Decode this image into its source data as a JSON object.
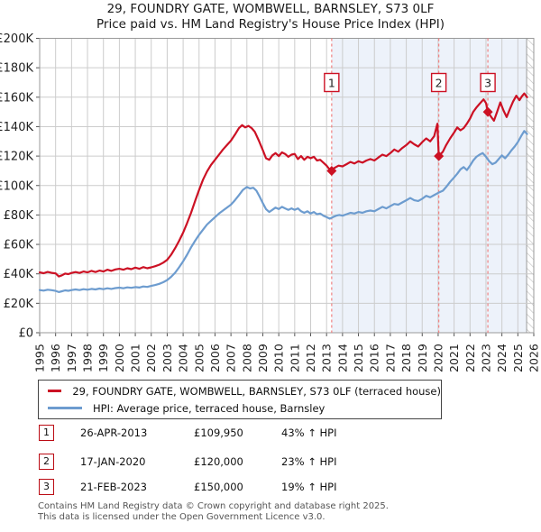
{
  "title": {
    "line1": "29, FOUNDRY GATE, WOMBWELL, BARNSLEY, S73 0LF",
    "line2": "Price paid vs. HM Land Registry's House Price Index (HPI)"
  },
  "chart_data": {
    "type": "line",
    "xlim": [
      1995,
      2026
    ],
    "ylim": [
      0,
      200000
    ],
    "values_unit": "GBP_thousands",
    "x_ticks": [
      1995,
      1996,
      1997,
      1998,
      1999,
      2000,
      2001,
      2002,
      2003,
      2004,
      2005,
      2006,
      2007,
      2008,
      2009,
      2010,
      2011,
      2012,
      2013,
      2014,
      2015,
      2016,
      2017,
      2018,
      2019,
      2020,
      2021,
      2022,
      2023,
      2024,
      2025,
      2026
    ],
    "y_tick_labels": [
      "£0",
      "£20K",
      "£40K",
      "£60K",
      "£80K",
      "£100K",
      "£120K",
      "£140K",
      "£160K",
      "£180K",
      "£200K"
    ],
    "grid": true,
    "shade_from_year": 2013.32,
    "hatch_from_year": 2025.55,
    "colors": {
      "property": "#cc1124",
      "hpi": "#6d9ccf",
      "sale_dash": "#f08080",
      "shade": "#edf2fa",
      "grid": "#cccccc",
      "border": "#999999",
      "hatch": "#bbbbbb"
    },
    "series": [
      {
        "name": "29, FOUNDRY GATE, WOMBWELL, BARNSLEY, S73 0LF (terraced house)",
        "color": "#cc1124",
        "points": [
          [
            1995.0,
            41.0
          ],
          [
            1995.25,
            40.4
          ],
          [
            1995.5,
            41.3
          ],
          [
            1995.75,
            40.7
          ],
          [
            1996.0,
            40.3
          ],
          [
            1996.2,
            38.2
          ],
          [
            1996.4,
            39.0
          ],
          [
            1996.6,
            40.2
          ],
          [
            1996.8,
            39.8
          ],
          [
            1997.0,
            40.6
          ],
          [
            1997.25,
            41.2
          ],
          [
            1997.5,
            40.6
          ],
          [
            1997.75,
            41.6
          ],
          [
            1998.0,
            41.0
          ],
          [
            1998.25,
            42.0
          ],
          [
            1998.5,
            41.2
          ],
          [
            1998.75,
            42.2
          ],
          [
            1999.0,
            41.6
          ],
          [
            1999.25,
            42.8
          ],
          [
            1999.5,
            42.0
          ],
          [
            1999.75,
            43.0
          ],
          [
            2000.0,
            43.4
          ],
          [
            2000.25,
            42.8
          ],
          [
            2000.5,
            43.8
          ],
          [
            2000.75,
            43.2
          ],
          [
            2001.0,
            44.2
          ],
          [
            2001.25,
            43.4
          ],
          [
            2001.5,
            44.6
          ],
          [
            2001.75,
            43.8
          ],
          [
            2002.0,
            44.4
          ],
          [
            2002.25,
            45.2
          ],
          [
            2002.5,
            46.2
          ],
          [
            2002.75,
            47.6
          ],
          [
            2003.0,
            49.5
          ],
          [
            2003.25,
            53.0
          ],
          [
            2003.5,
            57.5
          ],
          [
            2003.75,
            62.5
          ],
          [
            2004.0,
            68.0
          ],
          [
            2004.25,
            74.5
          ],
          [
            2004.5,
            81.5
          ],
          [
            2004.75,
            89.5
          ],
          [
            2005.0,
            97.0
          ],
          [
            2005.25,
            104.0
          ],
          [
            2005.5,
            109.5
          ],
          [
            2005.75,
            114.0
          ],
          [
            2006.0,
            117.5
          ],
          [
            2006.25,
            121.0
          ],
          [
            2006.5,
            124.5
          ],
          [
            2006.75,
            127.5
          ],
          [
            2007.0,
            130.5
          ],
          [
            2007.25,
            134.5
          ],
          [
            2007.5,
            139.0
          ],
          [
            2007.7,
            141.0
          ],
          [
            2007.9,
            139.5
          ],
          [
            2008.1,
            140.5
          ],
          [
            2008.3,
            139.0
          ],
          [
            2008.5,
            136.5
          ],
          [
            2008.75,
            130.5
          ],
          [
            2009.0,
            124.0
          ],
          [
            2009.2,
            118.5
          ],
          [
            2009.4,
            117.5
          ],
          [
            2009.6,
            120.5
          ],
          [
            2009.8,
            122.0
          ],
          [
            2010.0,
            120.0
          ],
          [
            2010.2,
            122.5
          ],
          [
            2010.4,
            121.5
          ],
          [
            2010.6,
            119.5
          ],
          [
            2010.8,
            121.0
          ],
          [
            2011.0,
            121.5
          ],
          [
            2011.2,
            118.0
          ],
          [
            2011.4,
            120.0
          ],
          [
            2011.6,
            117.5
          ],
          [
            2011.8,
            119.5
          ],
          [
            2012.0,
            118.5
          ],
          [
            2012.2,
            119.5
          ],
          [
            2012.4,
            117.0
          ],
          [
            2012.6,
            117.5
          ],
          [
            2012.8,
            115.5
          ],
          [
            2013.0,
            113.5
          ],
          [
            2013.15,
            111.5
          ],
          [
            2013.32,
            110.0
          ],
          [
            2013.5,
            112.0
          ],
          [
            2013.75,
            113.5
          ],
          [
            2014.0,
            113.0
          ],
          [
            2014.25,
            114.5
          ],
          [
            2014.5,
            116.0
          ],
          [
            2014.75,
            115.0
          ],
          [
            2015.0,
            116.5
          ],
          [
            2015.25,
            115.5
          ],
          [
            2015.5,
            117.0
          ],
          [
            2015.75,
            118.0
          ],
          [
            2016.0,
            117.0
          ],
          [
            2016.25,
            119.0
          ],
          [
            2016.5,
            121.0
          ],
          [
            2016.75,
            120.0
          ],
          [
            2017.0,
            122.0
          ],
          [
            2017.25,
            124.5
          ],
          [
            2017.5,
            123.0
          ],
          [
            2017.75,
            125.5
          ],
          [
            2018.0,
            127.5
          ],
          [
            2018.25,
            130.0
          ],
          [
            2018.5,
            128.0
          ],
          [
            2018.75,
            126.5
          ],
          [
            2019.0,
            129.5
          ],
          [
            2019.25,
            132.0
          ],
          [
            2019.5,
            130.0
          ],
          [
            2019.75,
            133.5
          ],
          [
            2019.95,
            142.0
          ],
          [
            2020.04,
            120.0
          ],
          [
            2020.3,
            123.0
          ],
          [
            2020.5,
            127.5
          ],
          [
            2020.75,
            132.0
          ],
          [
            2021.0,
            136.0
          ],
          [
            2021.2,
            139.5
          ],
          [
            2021.4,
            137.5
          ],
          [
            2021.6,
            139.0
          ],
          [
            2021.8,
            142.0
          ],
          [
            2022.0,
            145.5
          ],
          [
            2022.2,
            150.0
          ],
          [
            2022.4,
            153.0
          ],
          [
            2022.6,
            155.5
          ],
          [
            2022.85,
            158.5
          ],
          [
            2023.0,
            156.0
          ],
          [
            2023.12,
            150.0
          ],
          [
            2023.3,
            147.0
          ],
          [
            2023.5,
            144.0
          ],
          [
            2023.7,
            150.0
          ],
          [
            2023.9,
            156.5
          ],
          [
            2024.1,
            151.0
          ],
          [
            2024.3,
            146.5
          ],
          [
            2024.5,
            152.0
          ],
          [
            2024.7,
            157.0
          ],
          [
            2024.9,
            161.0
          ],
          [
            2025.1,
            158.0
          ],
          [
            2025.25,
            160.5
          ],
          [
            2025.4,
            162.5
          ],
          [
            2025.58,
            160.0
          ]
        ]
      },
      {
        "name": "HPI: Average price, terraced house, Barnsley",
        "color": "#6d9ccf",
        "points": [
          [
            1995.0,
            29.0
          ],
          [
            1995.25,
            28.6
          ],
          [
            1995.5,
            29.2
          ],
          [
            1995.75,
            28.9
          ],
          [
            1996.0,
            28.4
          ],
          [
            1996.2,
            27.6
          ],
          [
            1996.4,
            28.2
          ],
          [
            1996.6,
            28.8
          ],
          [
            1996.8,
            28.5
          ],
          [
            1997.0,
            29.0
          ],
          [
            1997.25,
            29.4
          ],
          [
            1997.5,
            29.0
          ],
          [
            1997.75,
            29.6
          ],
          [
            1998.0,
            29.2
          ],
          [
            1998.25,
            29.8
          ],
          [
            1998.5,
            29.4
          ],
          [
            1998.75,
            30.0
          ],
          [
            1999.0,
            29.6
          ],
          [
            1999.25,
            30.2
          ],
          [
            1999.5,
            29.8
          ],
          [
            1999.75,
            30.3
          ],
          [
            2000.0,
            30.6
          ],
          [
            2000.25,
            30.2
          ],
          [
            2000.5,
            30.8
          ],
          [
            2000.75,
            30.5
          ],
          [
            2001.0,
            31.0
          ],
          [
            2001.25,
            30.7
          ],
          [
            2001.5,
            31.4
          ],
          [
            2001.75,
            31.1
          ],
          [
            2002.0,
            31.8
          ],
          [
            2002.25,
            32.4
          ],
          [
            2002.5,
            33.2
          ],
          [
            2002.75,
            34.3
          ],
          [
            2003.0,
            35.8
          ],
          [
            2003.25,
            38.0
          ],
          [
            2003.5,
            40.8
          ],
          [
            2003.75,
            44.5
          ],
          [
            2004.0,
            48.5
          ],
          [
            2004.25,
            53.0
          ],
          [
            2004.5,
            58.0
          ],
          [
            2004.75,
            62.5
          ],
          [
            2005.0,
            66.5
          ],
          [
            2005.25,
            70.0
          ],
          [
            2005.5,
            73.5
          ],
          [
            2005.75,
            76.0
          ],
          [
            2006.0,
            78.5
          ],
          [
            2006.25,
            81.0
          ],
          [
            2006.5,
            83.0
          ],
          [
            2006.75,
            85.0
          ],
          [
            2007.0,
            87.0
          ],
          [
            2007.25,
            90.0
          ],
          [
            2007.5,
            93.5
          ],
          [
            2007.75,
            97.0
          ],
          [
            2008.0,
            99.0
          ],
          [
            2008.2,
            98.0
          ],
          [
            2008.4,
            98.5
          ],
          [
            2008.6,
            96.5
          ],
          [
            2008.8,
            92.5
          ],
          [
            2009.0,
            88.0
          ],
          [
            2009.2,
            84.0
          ],
          [
            2009.4,
            82.0
          ],
          [
            2009.6,
            83.5
          ],
          [
            2009.8,
            85.0
          ],
          [
            2010.0,
            84.0
          ],
          [
            2010.2,
            85.5
          ],
          [
            2010.4,
            84.5
          ],
          [
            2010.6,
            83.5
          ],
          [
            2010.8,
            84.5
          ],
          [
            2011.0,
            83.5
          ],
          [
            2011.2,
            84.5
          ],
          [
            2011.4,
            82.5
          ],
          [
            2011.6,
            81.5
          ],
          [
            2011.8,
            82.5
          ],
          [
            2012.0,
            81.0
          ],
          [
            2012.2,
            82.0
          ],
          [
            2012.4,
            80.5
          ],
          [
            2012.6,
            81.0
          ],
          [
            2012.8,
            79.5
          ],
          [
            2013.0,
            78.5
          ],
          [
            2013.2,
            77.5
          ],
          [
            2013.4,
            78.5
          ],
          [
            2013.6,
            79.5
          ],
          [
            2013.8,
            80.0
          ],
          [
            2014.0,
            79.5
          ],
          [
            2014.25,
            80.5
          ],
          [
            2014.5,
            81.5
          ],
          [
            2014.75,
            81.0
          ],
          [
            2015.0,
            82.0
          ],
          [
            2015.25,
            81.5
          ],
          [
            2015.5,
            82.5
          ],
          [
            2015.75,
            83.0
          ],
          [
            2016.0,
            82.5
          ],
          [
            2016.25,
            84.0
          ],
          [
            2016.5,
            85.5
          ],
          [
            2016.75,
            84.5
          ],
          [
            2017.0,
            86.0
          ],
          [
            2017.25,
            87.5
          ],
          [
            2017.5,
            87.0
          ],
          [
            2017.75,
            88.5
          ],
          [
            2018.0,
            90.0
          ],
          [
            2018.25,
            91.5
          ],
          [
            2018.5,
            90.0
          ],
          [
            2018.75,
            89.5
          ],
          [
            2019.0,
            91.0
          ],
          [
            2019.25,
            93.0
          ],
          [
            2019.5,
            92.0
          ],
          [
            2019.75,
            93.5
          ],
          [
            2020.0,
            95.0
          ],
          [
            2020.3,
            96.5
          ],
          [
            2020.5,
            99.0
          ],
          [
            2020.75,
            102.5
          ],
          [
            2021.0,
            105.5
          ],
          [
            2021.2,
            108.0
          ],
          [
            2021.4,
            111.0
          ],
          [
            2021.6,
            112.5
          ],
          [
            2021.8,
            110.5
          ],
          [
            2022.0,
            113.5
          ],
          [
            2022.2,
            117.0
          ],
          [
            2022.4,
            119.5
          ],
          [
            2022.6,
            121.0
          ],
          [
            2022.8,
            122.0
          ],
          [
            2023.0,
            119.5
          ],
          [
            2023.2,
            116.5
          ],
          [
            2023.4,
            114.5
          ],
          [
            2023.6,
            115.5
          ],
          [
            2023.8,
            118.0
          ],
          [
            2024.0,
            120.5
          ],
          [
            2024.2,
            118.5
          ],
          [
            2024.4,
            121.0
          ],
          [
            2024.6,
            124.0
          ],
          [
            2024.8,
            126.5
          ],
          [
            2025.0,
            129.5
          ],
          [
            2025.2,
            133.5
          ],
          [
            2025.4,
            137.0
          ],
          [
            2025.58,
            135.0
          ]
        ]
      }
    ],
    "sales": [
      {
        "num": "1",
        "year": 2013.32,
        "price_k": 109.95
      },
      {
        "num": "2",
        "year": 2020.04,
        "price_k": 120.0
      },
      {
        "num": "3",
        "year": 2023.12,
        "price_k": 150.0
      }
    ]
  },
  "legend": {
    "items": [
      {
        "label": "29, FOUNDRY GATE, WOMBWELL, BARNSLEY, S73 0LF (terraced house)",
        "color": "#cc1124"
      },
      {
        "label": "HPI: Average price, terraced house, Barnsley",
        "color": "#6d9ccf"
      }
    ]
  },
  "table": {
    "rows": [
      {
        "num": "1",
        "date": "26-APR-2013",
        "price": "£109,950",
        "hpi": "43% ↑ HPI"
      },
      {
        "num": "2",
        "date": "17-JAN-2020",
        "price": "£120,000",
        "hpi": "23% ↑ HPI"
      },
      {
        "num": "3",
        "date": "21-FEB-2023",
        "price": "£150,000",
        "hpi": "19% ↑ HPI"
      }
    ]
  },
  "footer": {
    "line1": "Contains HM Land Registry data © Crown copyright and database right 2025.",
    "line2": "This data is licensed under the Open Government Licence v3.0."
  }
}
